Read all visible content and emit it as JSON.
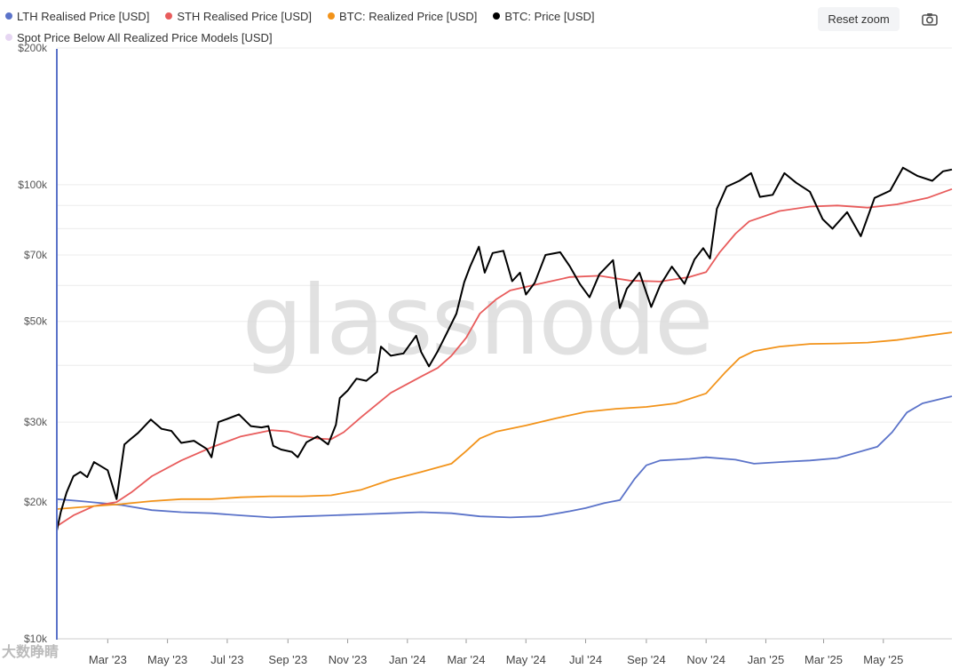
{
  "legend": {
    "row1": [
      {
        "label": "LTH Realised Price [USD]",
        "color": "#5b73c9"
      },
      {
        "label": "STH Realised Price [USD]",
        "color": "#e85c5c"
      },
      {
        "label": "BTC: Realized Price [USD]",
        "color": "#f2931a"
      },
      {
        "label": "BTC: Price [USD]",
        "color": "#000000"
      }
    ],
    "row2": [
      {
        "label": "Spot Price Below All Realized Price Models [USD]",
        "color": "#e6d6f2"
      }
    ]
  },
  "toolbar": {
    "reset_zoom": "Reset zoom",
    "camera_icon": "camera-icon"
  },
  "watermark": "glassnode",
  "corner_mark": "大数睁睛",
  "chart_data": {
    "type": "line",
    "yscale": "log",
    "ylim": [
      10000,
      200000
    ],
    "yticks": [
      {
        "v": 200000,
        "label": "$200k"
      },
      {
        "v": 100000,
        "label": "$100k"
      },
      {
        "v": 70000,
        "label": "$70k"
      },
      {
        "v": 50000,
        "label": "$50k"
      },
      {
        "v": 30000,
        "label": "$30k"
      },
      {
        "v": 20000,
        "label": "$20k"
      },
      {
        "v": 10000,
        "label": "$10k"
      }
    ],
    "xlim": [
      "2023-01-08",
      "2025-07-10"
    ],
    "xticks": [
      {
        "d": "2023-03-01",
        "label": "Mar '23"
      },
      {
        "d": "2023-05-01",
        "label": "May '23"
      },
      {
        "d": "2023-07-01",
        "label": "Jul '23"
      },
      {
        "d": "2023-09-01",
        "label": "Sep '23"
      },
      {
        "d": "2023-11-01",
        "label": "Nov '23"
      },
      {
        "d": "2024-01-01",
        "label": "Jan '24"
      },
      {
        "d": "2024-03-01",
        "label": "Mar '24"
      },
      {
        "d": "2024-05-01",
        "label": "May '24"
      },
      {
        "d": "2024-07-01",
        "label": "Jul '24"
      },
      {
        "d": "2024-09-01",
        "label": "Sep '24"
      },
      {
        "d": "2024-11-01",
        "label": "Nov '24"
      },
      {
        "d": "2025-01-01",
        "label": "Jan '25"
      },
      {
        "d": "2025-03-01",
        "label": "Mar '25"
      },
      {
        "d": "2025-05-01",
        "label": "May '25"
      }
    ],
    "series": [
      {
        "color": "#5b73c9",
        "points": [
          [
            "2023-01-08",
            20300
          ],
          [
            "2023-02-01",
            20100
          ],
          [
            "2023-03-15",
            19700
          ],
          [
            "2023-04-15",
            19200
          ],
          [
            "2023-05-15",
            19000
          ],
          [
            "2023-06-15",
            18900
          ],
          [
            "2023-07-15",
            18700
          ],
          [
            "2023-08-15",
            18500
          ],
          [
            "2023-09-15",
            18600
          ],
          [
            "2023-10-15",
            18700
          ],
          [
            "2023-11-15",
            18800
          ],
          [
            "2023-12-15",
            18900
          ],
          [
            "2024-01-15",
            19000
          ],
          [
            "2024-02-15",
            18900
          ],
          [
            "2024-03-15",
            18600
          ],
          [
            "2024-04-15",
            18500
          ],
          [
            "2024-05-15",
            18600
          ],
          [
            "2024-06-15",
            19100
          ],
          [
            "2024-07-01",
            19400
          ],
          [
            "2024-07-20",
            19900
          ],
          [
            "2024-08-05",
            20200
          ],
          [
            "2024-08-20",
            22500
          ],
          [
            "2024-09-01",
            24100
          ],
          [
            "2024-09-15",
            24700
          ],
          [
            "2024-10-15",
            24900
          ],
          [
            "2024-11-01",
            25100
          ],
          [
            "2024-12-01",
            24800
          ],
          [
            "2024-12-20",
            24300
          ],
          [
            "2025-01-15",
            24500
          ],
          [
            "2025-02-15",
            24700
          ],
          [
            "2025-03-15",
            25000
          ],
          [
            "2025-04-01",
            25600
          ],
          [
            "2025-04-25",
            26500
          ],
          [
            "2025-05-10",
            28500
          ],
          [
            "2025-05-25",
            31500
          ],
          [
            "2025-06-10",
            33000
          ],
          [
            "2025-07-10",
            34200
          ]
        ]
      },
      {
        "color": "#e85c5c",
        "points": [
          [
            "2023-01-08",
            17700
          ],
          [
            "2023-01-25",
            18700
          ],
          [
            "2023-02-15",
            19600
          ],
          [
            "2023-03-10",
            20000
          ],
          [
            "2023-03-25",
            21000
          ],
          [
            "2023-04-15",
            22800
          ],
          [
            "2023-05-15",
            24700
          ],
          [
            "2023-06-15",
            26400
          ],
          [
            "2023-07-15",
            27900
          ],
          [
            "2023-08-15",
            28800
          ],
          [
            "2023-09-01",
            28600
          ],
          [
            "2023-09-15",
            28000
          ],
          [
            "2023-10-01",
            27600
          ],
          [
            "2023-10-15",
            27500
          ],
          [
            "2023-10-28",
            28500
          ],
          [
            "2023-11-15",
            30800
          ],
          [
            "2023-12-15",
            34800
          ],
          [
            "2024-01-15",
            37800
          ],
          [
            "2024-02-01",
            39500
          ],
          [
            "2024-02-15",
            42000
          ],
          [
            "2024-03-01",
            46000
          ],
          [
            "2024-03-15",
            52000
          ],
          [
            "2024-04-01",
            56000
          ],
          [
            "2024-04-15",
            58500
          ],
          [
            "2024-05-15",
            60500
          ],
          [
            "2024-06-15",
            62600
          ],
          [
            "2024-07-15",
            63000
          ],
          [
            "2024-08-15",
            61500
          ],
          [
            "2024-09-15",
            61200
          ],
          [
            "2024-10-15",
            62600
          ],
          [
            "2024-11-01",
            64200
          ],
          [
            "2024-11-15",
            71000
          ],
          [
            "2024-12-01",
            78000
          ],
          [
            "2024-12-15",
            83000
          ],
          [
            "2025-01-15",
            87500
          ],
          [
            "2025-02-15",
            89500
          ],
          [
            "2025-03-15",
            90000
          ],
          [
            "2025-04-15",
            89000
          ],
          [
            "2025-05-15",
            90500
          ],
          [
            "2025-06-15",
            93500
          ],
          [
            "2025-07-10",
            97800
          ]
        ]
      },
      {
        "color": "#f2931a",
        "points": [
          [
            "2023-01-08",
            19300
          ],
          [
            "2023-02-15",
            19600
          ],
          [
            "2023-03-15",
            19800
          ],
          [
            "2023-04-15",
            20100
          ],
          [
            "2023-05-15",
            20300
          ],
          [
            "2023-06-15",
            20300
          ],
          [
            "2023-07-15",
            20500
          ],
          [
            "2023-08-15",
            20600
          ],
          [
            "2023-09-15",
            20600
          ],
          [
            "2023-10-15",
            20700
          ],
          [
            "2023-11-15",
            21300
          ],
          [
            "2023-12-15",
            22400
          ],
          [
            "2024-01-15",
            23300
          ],
          [
            "2024-02-15",
            24300
          ],
          [
            "2024-03-01",
            25900
          ],
          [
            "2024-03-15",
            27600
          ],
          [
            "2024-04-01",
            28600
          ],
          [
            "2024-05-01",
            29500
          ],
          [
            "2024-06-01",
            30600
          ],
          [
            "2024-07-01",
            31600
          ],
          [
            "2024-08-01",
            32100
          ],
          [
            "2024-09-01",
            32400
          ],
          [
            "2024-10-01",
            33000
          ],
          [
            "2024-11-01",
            34700
          ],
          [
            "2024-11-20",
            38500
          ],
          [
            "2024-12-05",
            41500
          ],
          [
            "2024-12-20",
            43000
          ],
          [
            "2025-01-15",
            44000
          ],
          [
            "2025-02-15",
            44600
          ],
          [
            "2025-03-15",
            44700
          ],
          [
            "2025-04-15",
            44900
          ],
          [
            "2025-05-15",
            45500
          ],
          [
            "2025-06-15",
            46500
          ],
          [
            "2025-07-10",
            47300
          ]
        ]
      },
      {
        "color": "#000000",
        "points": [
          [
            "2023-01-08",
            17300
          ],
          [
            "2023-01-12",
            19000
          ],
          [
            "2023-01-18",
            21000
          ],
          [
            "2023-01-25",
            22800
          ],
          [
            "2023-02-01",
            23300
          ],
          [
            "2023-02-08",
            22700
          ],
          [
            "2023-02-15",
            24500
          ],
          [
            "2023-02-22",
            24000
          ],
          [
            "2023-03-01",
            23500
          ],
          [
            "2023-03-10",
            20300
          ],
          [
            "2023-03-18",
            26800
          ],
          [
            "2023-03-25",
            27600
          ],
          [
            "2023-04-01",
            28400
          ],
          [
            "2023-04-14",
            30400
          ],
          [
            "2023-04-25",
            29000
          ],
          [
            "2023-05-05",
            28700
          ],
          [
            "2023-05-15",
            27000
          ],
          [
            "2023-05-28",
            27300
          ],
          [
            "2023-06-10",
            26200
          ],
          [
            "2023-06-15",
            25100
          ],
          [
            "2023-06-22",
            30000
          ],
          [
            "2023-07-01",
            30500
          ],
          [
            "2023-07-13",
            31200
          ],
          [
            "2023-07-25",
            29400
          ],
          [
            "2023-08-05",
            29200
          ],
          [
            "2023-08-12",
            29400
          ],
          [
            "2023-08-17",
            26600
          ],
          [
            "2023-08-25",
            26100
          ],
          [
            "2023-09-05",
            25800
          ],
          [
            "2023-09-11",
            25100
          ],
          [
            "2023-09-20",
            27100
          ],
          [
            "2023-10-01",
            27900
          ],
          [
            "2023-10-12",
            26800
          ],
          [
            "2023-10-20",
            29600
          ],
          [
            "2023-10-24",
            33900
          ],
          [
            "2023-11-01",
            35200
          ],
          [
            "2023-11-10",
            37400
          ],
          [
            "2023-11-20",
            37000
          ],
          [
            "2023-12-01",
            38700
          ],
          [
            "2023-12-05",
            44000
          ],
          [
            "2023-12-15",
            42000
          ],
          [
            "2023-12-28",
            42500
          ],
          [
            "2024-01-10",
            46500
          ],
          [
            "2024-01-15",
            42800
          ],
          [
            "2024-01-23",
            39800
          ],
          [
            "2024-02-01",
            43000
          ],
          [
            "2024-02-10",
            47000
          ],
          [
            "2024-02-20",
            52000
          ],
          [
            "2024-02-28",
            61000
          ],
          [
            "2024-03-05",
            66000
          ],
          [
            "2024-03-14",
            73000
          ],
          [
            "2024-03-20",
            64000
          ],
          [
            "2024-03-28",
            70700
          ],
          [
            "2024-04-08",
            71500
          ],
          [
            "2024-04-17",
            61300
          ],
          [
            "2024-04-25",
            64000
          ],
          [
            "2024-05-01",
            57300
          ],
          [
            "2024-05-10",
            60800
          ],
          [
            "2024-05-21",
            70000
          ],
          [
            "2024-06-05",
            71000
          ],
          [
            "2024-06-15",
            66000
          ],
          [
            "2024-06-25",
            60500
          ],
          [
            "2024-07-05",
            56500
          ],
          [
            "2024-07-15",
            63500
          ],
          [
            "2024-07-29",
            68200
          ],
          [
            "2024-08-05",
            53500
          ],
          [
            "2024-08-12",
            59000
          ],
          [
            "2024-08-25",
            64000
          ],
          [
            "2024-09-06",
            53800
          ],
          [
            "2024-09-15",
            60000
          ],
          [
            "2024-09-27",
            66000
          ],
          [
            "2024-10-10",
            60500
          ],
          [
            "2024-10-20",
            68400
          ],
          [
            "2024-10-29",
            72500
          ],
          [
            "2024-11-05",
            68800
          ],
          [
            "2024-11-12",
            88500
          ],
          [
            "2024-11-22",
            99000
          ],
          [
            "2024-12-05",
            102000
          ],
          [
            "2024-12-17",
            106000
          ],
          [
            "2024-12-26",
            94000
          ],
          [
            "2025-01-08",
            95000
          ],
          [
            "2025-01-20",
            106000
          ],
          [
            "2025-02-01",
            101000
          ],
          [
            "2025-02-15",
            96500
          ],
          [
            "2025-02-28",
            84000
          ],
          [
            "2025-03-10",
            80000
          ],
          [
            "2025-03-25",
            87000
          ],
          [
            "2025-04-08",
            77000
          ],
          [
            "2025-04-22",
            93500
          ],
          [
            "2025-05-08",
            97000
          ],
          [
            "2025-05-21",
            109000
          ],
          [
            "2025-06-05",
            104500
          ],
          [
            "2025-06-20",
            102000
          ],
          [
            "2025-07-01",
            107000
          ],
          [
            "2025-07-10",
            108000
          ]
        ]
      }
    ]
  }
}
